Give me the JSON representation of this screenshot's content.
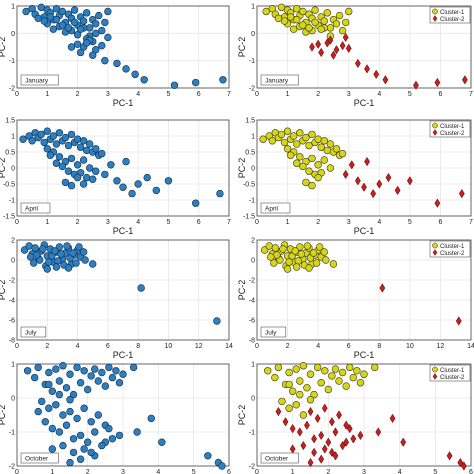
{
  "figure": {
    "colors": {
      "single": "#2e7fc1",
      "cluster1": "#d6d41c",
      "cluster2": "#c81e1e",
      "grid": "#e6e6e6"
    }
  },
  "panels": [
    {
      "month": "January",
      "xlim": [
        0,
        7
      ],
      "ylim": [
        -2,
        1
      ],
      "xticks": [
        0,
        1,
        2,
        3,
        4,
        5,
        6,
        7
      ],
      "yticks": [
        -2,
        -1,
        0,
        1
      ],
      "xlabel": "PC-1",
      "ylabel": "PC-2"
    },
    {
      "month": "April",
      "xlim": [
        0,
        7
      ],
      "ylim": [
        -1.5,
        1.5
      ],
      "xticks": [
        0,
        1,
        2,
        3,
        4,
        5,
        6,
        7
      ],
      "yticks": [
        -1.5,
        -1,
        -0.5,
        0,
        0.5,
        1,
        1.5
      ],
      "xlabel": "PC-1",
      "ylabel": "PC-2"
    },
    {
      "month": "July",
      "xlim": [
        0,
        14
      ],
      "ylim": [
        -8,
        2
      ],
      "xticks": [
        0,
        2,
        4,
        6,
        8,
        10,
        12,
        14
      ],
      "yticks": [
        -8,
        -6,
        -4,
        -2,
        0,
        2
      ],
      "xlabel": "PC-1",
      "ylabel": "PC-2"
    },
    {
      "month": "October",
      "xlim": [
        0,
        6
      ],
      "ylim": [
        -2,
        1
      ],
      "xticks": [
        0,
        1,
        2,
        3,
        4,
        5,
        6
      ],
      "yticks": [
        -2,
        -1,
        0,
        1
      ],
      "xlabel": "",
      "ylabel": "PC-2"
    }
  ],
  "legend": {
    "items": [
      "Cluster-1",
      "Cluster-2"
    ],
    "position": "top-right"
  },
  "chart_data": [
    {
      "type": "scatter",
      "month": "January",
      "clustered": false,
      "x": [
        0.3,
        0.5,
        0.6,
        0.8,
        0.9,
        1.0,
        1.1,
        1.2,
        1.3,
        1.4,
        1.5,
        1.6,
        1.7,
        1.8,
        1.9,
        2.0,
        2.1,
        2.2,
        2.3,
        2.4,
        2.5,
        2.6,
        2.7,
        2.8,
        2.9,
        3.0,
        1.0,
        1.2,
        1.4,
        1.6,
        1.8,
        2.0,
        2.2,
        2.4,
        2.6,
        1.3,
        1.5,
        1.7,
        1.9,
        2.1,
        2.3,
        2.5,
        0.7,
        0.9,
        1.1,
        2.0,
        2.2,
        2.4,
        2.6,
        2.8,
        3.0,
        1.8,
        2.1,
        2.3,
        2.5,
        2.9,
        3.3,
        3.6,
        3.9,
        4.2,
        5.2,
        5.9,
        6.8
      ],
      "y": [
        0.8,
        0.9,
        0.7,
        0.95,
        0.6,
        0.85,
        0.75,
        0.5,
        0.9,
        0.65,
        0.8,
        0.4,
        0.7,
        0.55,
        0.85,
        0.3,
        0.6,
        0.45,
        0.75,
        0.2,
        0.5,
        0.35,
        0.65,
        0.1,
        0.4,
        0.8,
        0.35,
        0.15,
        0.25,
        0.05,
        0.1,
        -0.05,
        0.2,
        -0.1,
        0.0,
        0.5,
        0.3,
        0.2,
        0.4,
        0.15,
        -0.2,
        -0.3,
        0.55,
        0.45,
        0.6,
        -0.4,
        -0.5,
        -0.25,
        -0.6,
        -0.45,
        -0.15,
        -0.5,
        -0.7,
        -0.35,
        -0.8,
        -1.0,
        -1.1,
        -1.3,
        -1.5,
        -1.7,
        -1.9,
        -1.8,
        -1.7
      ]
    },
    {
      "type": "scatter",
      "month": "January",
      "clustered": true,
      "series": [
        {
          "name": "Cluster-1",
          "x": [
            0.3,
            0.5,
            0.6,
            0.8,
            0.9,
            1.0,
            1.1,
            1.2,
            1.3,
            1.4,
            1.5,
            1.6,
            1.7,
            1.8,
            1.9,
            2.0,
            2.1,
            2.2,
            2.3,
            2.4,
            2.5,
            2.6,
            2.7,
            2.9,
            3.0,
            1.0,
            1.2,
            1.4,
            1.6,
            1.8,
            2.2,
            1.3,
            1.5,
            1.7,
            1.9,
            2.1,
            0.7,
            0.9,
            1.1,
            2.4,
            2.8
          ],
          "y": [
            0.8,
            0.9,
            0.7,
            0.95,
            0.6,
            0.85,
            0.75,
            0.5,
            0.9,
            0.65,
            0.8,
            0.4,
            0.7,
            0.55,
            0.85,
            0.3,
            0.6,
            0.45,
            0.75,
            0.2,
            0.5,
            0.35,
            0.65,
            0.4,
            0.8,
            0.35,
            0.15,
            0.25,
            0.05,
            0.1,
            0.2,
            0.5,
            0.3,
            0.2,
            0.4,
            0.15,
            0.55,
            0.45,
            0.6,
            -0.1,
            0.1
          ]
        },
        {
          "name": "Cluster-2",
          "x": [
            1.8,
            2.0,
            2.1,
            2.3,
            2.4,
            2.5,
            2.6,
            2.8,
            2.9,
            3.0,
            3.3,
            3.6,
            3.9,
            4.2,
            5.2,
            5.9,
            6.8
          ],
          "y": [
            -0.5,
            -0.4,
            -0.7,
            -0.35,
            -0.25,
            -0.8,
            -0.6,
            -0.45,
            -0.15,
            -0.55,
            -1.1,
            -1.3,
            -1.5,
            -1.7,
            -1.9,
            -1.8,
            -1.7
          ]
        }
      ]
    },
    {
      "type": "scatter",
      "month": "April",
      "clustered": false,
      "x": [
        0.2,
        0.4,
        0.5,
        0.6,
        0.7,
        0.8,
        0.9,
        1.0,
        1.1,
        1.2,
        1.3,
        1.4,
        1.5,
        1.6,
        1.7,
        1.8,
        1.9,
        2.0,
        2.1,
        2.2,
        2.3,
        2.4,
        2.5,
        2.6,
        2.7,
        2.8,
        1.0,
        1.2,
        1.4,
        1.6,
        1.8,
        2.0,
        2.2,
        2.4,
        2.6,
        1.1,
        1.3,
        1.5,
        1.7,
        1.9,
        2.1,
        2.3,
        2.5,
        1.6,
        1.8,
        2.0,
        2.2,
        2.9,
        3.1,
        3.3,
        3.5,
        3.6,
        3.8,
        4.0,
        4.3,
        4.6,
        5.0,
        5.9,
        6.7
      ],
      "y": [
        0.9,
        1.0,
        0.85,
        1.1,
        0.95,
        1.05,
        0.8,
        1.15,
        0.9,
        1.0,
        0.75,
        1.1,
        0.85,
        0.95,
        0.7,
        1.05,
        0.8,
        0.9,
        0.65,
        0.85,
        0.55,
        0.75,
        0.5,
        0.6,
        0.4,
        0.45,
        0.6,
        0.5,
        0.35,
        0.2,
        0.3,
        0.1,
        0.25,
        0.0,
        -0.1,
        0.4,
        0.15,
        0.05,
        -0.1,
        -0.2,
        -0.15,
        -0.3,
        -0.35,
        -0.45,
        -0.55,
        -0.3,
        -0.5,
        -0.2,
        0.1,
        -0.4,
        -0.6,
        0.2,
        -0.8,
        -0.5,
        -0.3,
        -0.7,
        -0.4,
        -1.1,
        -0.8
      ]
    },
    {
      "type": "scatter",
      "month": "April",
      "clustered": true,
      "series": [
        {
          "name": "Cluster-1",
          "x": [
            0.2,
            0.4,
            0.5,
            0.6,
            0.7,
            0.8,
            0.9,
            1.0,
            1.1,
            1.2,
            1.3,
            1.4,
            1.5,
            1.6,
            1.7,
            1.8,
            1.9,
            2.0,
            2.1,
            2.2,
            2.3,
            2.4,
            2.5,
            2.6,
            2.7,
            2.8,
            1.0,
            1.2,
            1.4,
            1.6,
            1.8,
            2.0,
            2.2,
            2.4,
            1.1,
            1.3,
            1.5,
            1.7,
            1.9,
            2.1,
            1.6,
            1.8,
            2.0
          ],
          "y": [
            0.9,
            1.0,
            0.85,
            1.1,
            0.95,
            1.05,
            0.8,
            1.15,
            0.9,
            1.0,
            0.75,
            1.1,
            0.85,
            0.95,
            0.7,
            1.05,
            0.8,
            0.9,
            0.65,
            0.85,
            0.55,
            0.75,
            0.5,
            0.6,
            0.4,
            0.45,
            0.6,
            0.5,
            0.35,
            0.2,
            0.3,
            0.1,
            0.25,
            0.0,
            0.4,
            0.15,
            0.05,
            -0.1,
            -0.2,
            -0.15,
            -0.45,
            -0.55,
            -0.3
          ]
        },
        {
          "name": "Cluster-2",
          "x": [
            2.9,
            3.1,
            3.3,
            3.5,
            3.6,
            3.8,
            4.0,
            4.3,
            4.6,
            5.0,
            5.9,
            6.7
          ],
          "y": [
            -0.2,
            0.1,
            -0.4,
            -0.6,
            0.2,
            -0.8,
            -0.5,
            -0.3,
            -0.7,
            -0.4,
            -1.1,
            -0.8
          ]
        }
      ]
    },
    {
      "type": "scatter",
      "month": "July",
      "clustered": false,
      "x": [
        0.5,
        0.8,
        1.0,
        1.2,
        1.4,
        1.6,
        1.8,
        2.0,
        2.2,
        2.4,
        2.6,
        2.8,
        3.0,
        3.2,
        3.4,
        3.6,
        3.8,
        4.0,
        4.2,
        4.4,
        1.1,
        1.5,
        1.9,
        2.3,
        2.7,
        3.1,
        3.5,
        3.9,
        1.3,
        1.7,
        2.1,
        2.5,
        2.9,
        3.3,
        3.7,
        4.1,
        0.9,
        2.0,
        2.6,
        3.4,
        4.5,
        5.0,
        8.2,
        13.2
      ],
      "y": [
        1.0,
        1.4,
        0.6,
        1.2,
        0.2,
        0.9,
        1.5,
        0.4,
        1.1,
        -0.2,
        0.8,
        1.3,
        0.1,
        0.7,
        1.2,
        -0.4,
        0.5,
        1.0,
        0.3,
        0.8,
        -0.3,
        0.0,
        -0.6,
        0.4,
        -0.1,
        -0.5,
        0.2,
        -0.3,
        0.5,
        1.1,
        -0.2,
        0.9,
        0.6,
        1.4,
        0.7,
        1.3,
        0.3,
        -0.9,
        -0.7,
        -0.8,
        0.0,
        -0.4,
        -2.8,
        -6.1
      ]
    },
    {
      "type": "scatter",
      "month": "July",
      "clustered": true,
      "series": [
        {
          "name": "Cluster-1",
          "x": [
            0.5,
            0.8,
            1.0,
            1.2,
            1.4,
            1.6,
            1.8,
            2.0,
            2.2,
            2.4,
            2.6,
            2.8,
            3.0,
            3.2,
            3.4,
            3.6,
            3.8,
            4.0,
            4.2,
            4.4,
            1.1,
            1.5,
            1.9,
            2.3,
            2.7,
            3.1,
            3.5,
            3.9,
            1.3,
            1.7,
            2.1,
            2.5,
            2.9,
            3.3,
            3.7,
            4.1,
            0.9,
            2.0,
            2.6,
            3.4,
            4.5,
            5.0
          ],
          "y": [
            1.0,
            1.4,
            0.6,
            1.2,
            0.2,
            0.9,
            1.5,
            0.4,
            1.1,
            -0.2,
            0.8,
            1.3,
            0.1,
            0.7,
            1.2,
            -0.4,
            0.5,
            1.0,
            0.3,
            0.8,
            -0.3,
            0.0,
            -0.6,
            0.4,
            -0.1,
            -0.5,
            0.2,
            -0.3,
            0.5,
            1.1,
            -0.2,
            0.9,
            0.6,
            1.4,
            0.7,
            1.3,
            0.3,
            -0.9,
            -0.7,
            -0.8,
            0.0,
            -0.4
          ]
        },
        {
          "name": "Cluster-2",
          "x": [
            8.2,
            13.2
          ],
          "y": [
            -2.8,
            -6.1
          ]
        }
      ]
    },
    {
      "type": "scatter",
      "month": "October",
      "clustered": false,
      "x": [
        0.3,
        0.5,
        0.6,
        0.8,
        0.9,
        1.0,
        1.1,
        1.2,
        1.3,
        1.4,
        1.5,
        1.6,
        1.7,
        1.8,
        1.9,
        2.0,
        2.1,
        2.2,
        2.3,
        2.4,
        2.5,
        2.6,
        2.7,
        2.8,
        2.9,
        3.0,
        0.7,
        0.9,
        1.1,
        1.3,
        1.5,
        1.7,
        1.9,
        2.1,
        2.3,
        2.5,
        0.6,
        0.8,
        1.0,
        1.2,
        1.4,
        1.6,
        1.8,
        2.0,
        2.2,
        1.0,
        1.3,
        1.6,
        1.9,
        2.2,
        2.5,
        1.5,
        1.8,
        2.1,
        2.4,
        2.7,
        3.4,
        4.1,
        5.4,
        5.7,
        5.8,
        0.9,
        1.2,
        1.5,
        3.3,
        3.8,
        2.6,
        2.9
      ],
      "y": [
        0.8,
        0.6,
        0.9,
        0.4,
        0.75,
        0.2,
        0.85,
        0.5,
        0.95,
        0.3,
        0.7,
        0.1,
        0.9,
        0.45,
        0.8,
        0.25,
        0.65,
        0.85,
        0.5,
        0.75,
        0.35,
        0.9,
        0.6,
        0.8,
        0.45,
        0.7,
        -0.1,
        -0.3,
        -0.2,
        -0.5,
        -0.4,
        -0.6,
        -0.3,
        -0.7,
        -0.5,
        -0.8,
        -0.4,
        -0.7,
        -0.9,
        -1.0,
        -0.8,
        -1.2,
        -1.1,
        -1.3,
        -1.0,
        -1.5,
        -1.4,
        -1.6,
        -1.5,
        -1.7,
        -1.3,
        -1.9,
        -1.8,
        -1.6,
        -1.4,
        -1.2,
        -1.0,
        -1.3,
        -1.7,
        -1.9,
        -2.0,
        0.4,
        0.1,
        -0.05,
        0.9,
        -0.6,
        -0.9,
        -1.1
      ]
    },
    {
      "type": "scatter",
      "month": "October",
      "clustered": true,
      "series": [
        {
          "name": "Cluster-1",
          "x": [
            0.3,
            0.5,
            0.6,
            0.8,
            0.9,
            1.0,
            1.1,
            1.2,
            1.3,
            1.4,
            1.5,
            1.6,
            1.7,
            1.8,
            1.9,
            2.0,
            2.1,
            2.2,
            2.3,
            2.4,
            2.5,
            2.6,
            2.7,
            2.8,
            2.9,
            3.0,
            0.7,
            0.9,
            1.1,
            1.3,
            0.9,
            1.2,
            1.5,
            3.3
          ],
          "y": [
            0.8,
            0.6,
            0.9,
            0.4,
            0.75,
            0.2,
            0.85,
            0.5,
            0.95,
            0.3,
            0.7,
            0.1,
            0.9,
            0.45,
            0.8,
            0.25,
            0.65,
            0.85,
            0.5,
            0.75,
            0.35,
            0.9,
            0.6,
            0.8,
            0.45,
            0.7,
            -0.1,
            -0.3,
            -0.2,
            -0.5,
            0.4,
            0.1,
            -0.05,
            0.9
          ]
        },
        {
          "name": "Cluster-2",
          "x": [
            1.5,
            1.7,
            1.9,
            2.1,
            2.3,
            2.5,
            0.6,
            0.8,
            1.0,
            1.2,
            1.4,
            1.6,
            1.8,
            2.0,
            2.2,
            1.0,
            1.3,
            1.6,
            1.9,
            2.2,
            2.5,
            1.5,
            1.8,
            2.1,
            2.4,
            2.7,
            3.4,
            4.1,
            5.4,
            5.7,
            5.8,
            3.8,
            2.6,
            2.9
          ],
          "y": [
            -0.4,
            -0.6,
            -0.3,
            -0.7,
            -0.5,
            -0.8,
            -0.4,
            -0.7,
            -0.9,
            -1.0,
            -0.8,
            -1.2,
            -1.1,
            -1.3,
            -1.0,
            -1.5,
            -1.4,
            -1.6,
            -1.5,
            -1.7,
            -1.3,
            -1.9,
            -1.8,
            -1.6,
            -1.4,
            -1.2,
            -1.0,
            -1.3,
            -1.7,
            -1.9,
            -2.0,
            -0.6,
            -0.9,
            -1.1
          ]
        }
      ]
    }
  ]
}
